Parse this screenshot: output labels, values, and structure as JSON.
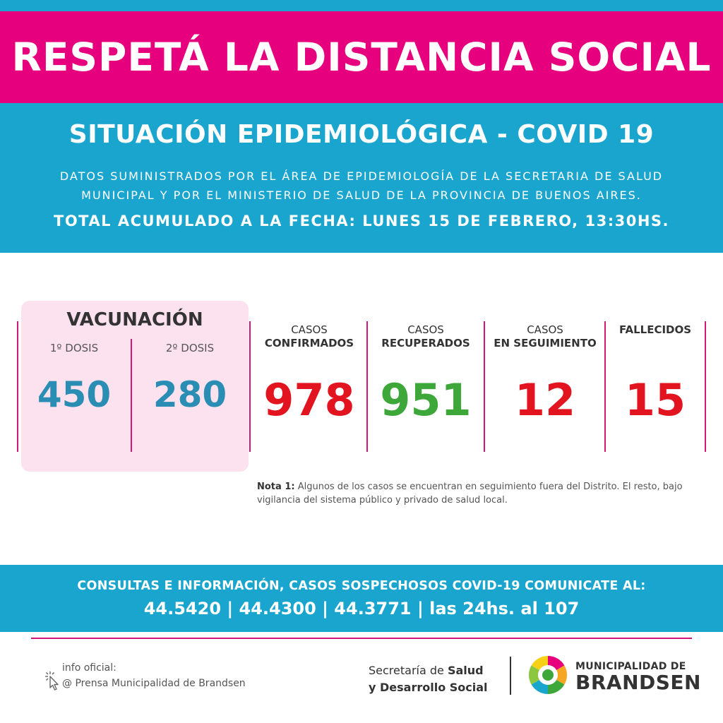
{
  "header": {
    "title": "RESPETÁ LA DISTANCIA SOCIAL"
  },
  "situation": {
    "title": "SITUACIÓN EPIDEMIOLÓGICA - COVID 19",
    "source_line1": "DATOS SUMINISTRADOS POR EL ÁREA DE EPIDEMIOLOGÍA DE LA SECRETARIA DE SALUD",
    "source_line2": "MUNICIPAL Y POR EL MINISTERIO DE SALUD DE LA PROVINCIA DE BUENOS AIRES.",
    "date": "TOTAL ACUMULADO A LA FECHA: LUNES 15 DE FEBRERO, 13:30HS."
  },
  "vaccination": {
    "title": "VACUNACIÓN",
    "dose1_label": "1º DOSIS",
    "dose1_value": "450",
    "dose2_label": "2º DOSIS",
    "dose2_value": "280"
  },
  "cases": [
    {
      "line1": "CASOS",
      "line2": "CONFIRMADOS",
      "value": "978",
      "color": "#e2141f"
    },
    {
      "line1": "CASOS",
      "line2": "RECUPERADOS",
      "value": "951",
      "color": "#3da73a"
    },
    {
      "line1": "CASOS",
      "line2": "EN SEGUIMIENTO",
      "value": "12",
      "color": "#e2141f"
    },
    {
      "line1": "",
      "line2": "FALLECIDOS",
      "value": "15",
      "color": "#e2141f"
    }
  ],
  "note": {
    "label": "Nota 1:",
    "text": " Algunos de los casos se encuentran en seguimiento fuera del Distrito. El resto, bajo vigilancia del sistema público y privado de salud local."
  },
  "contact": {
    "line1": "CONSULTAS E INFORMACIÓN, CASOS SOSPECHOSOS COVID-19 COMUNICATE AL:",
    "line2": "44.5420 | 44.4300 | 44.3771 | las 24hs. al 107"
  },
  "footer": {
    "info_label": "info oficial:",
    "info_handle": "@ Prensa Municipalidad de Brandsen",
    "secretaria_prefix": "Secretaría de ",
    "secretaria_bold1": "Salud",
    "secretaria_bold2": "y Desarrollo Social",
    "municipality_line1": "MUNICIPALIDAD DE",
    "municipality_line2": "BRANDSEN"
  },
  "colors": {
    "pink": "#e6007e",
    "blue": "#1aa5cf",
    "vaccine_blue": "#2a8db4",
    "red": "#e2141f",
    "green": "#3da73a"
  },
  "icons": [
    "click-cursor-icon",
    "municipality-logo-icon"
  ]
}
